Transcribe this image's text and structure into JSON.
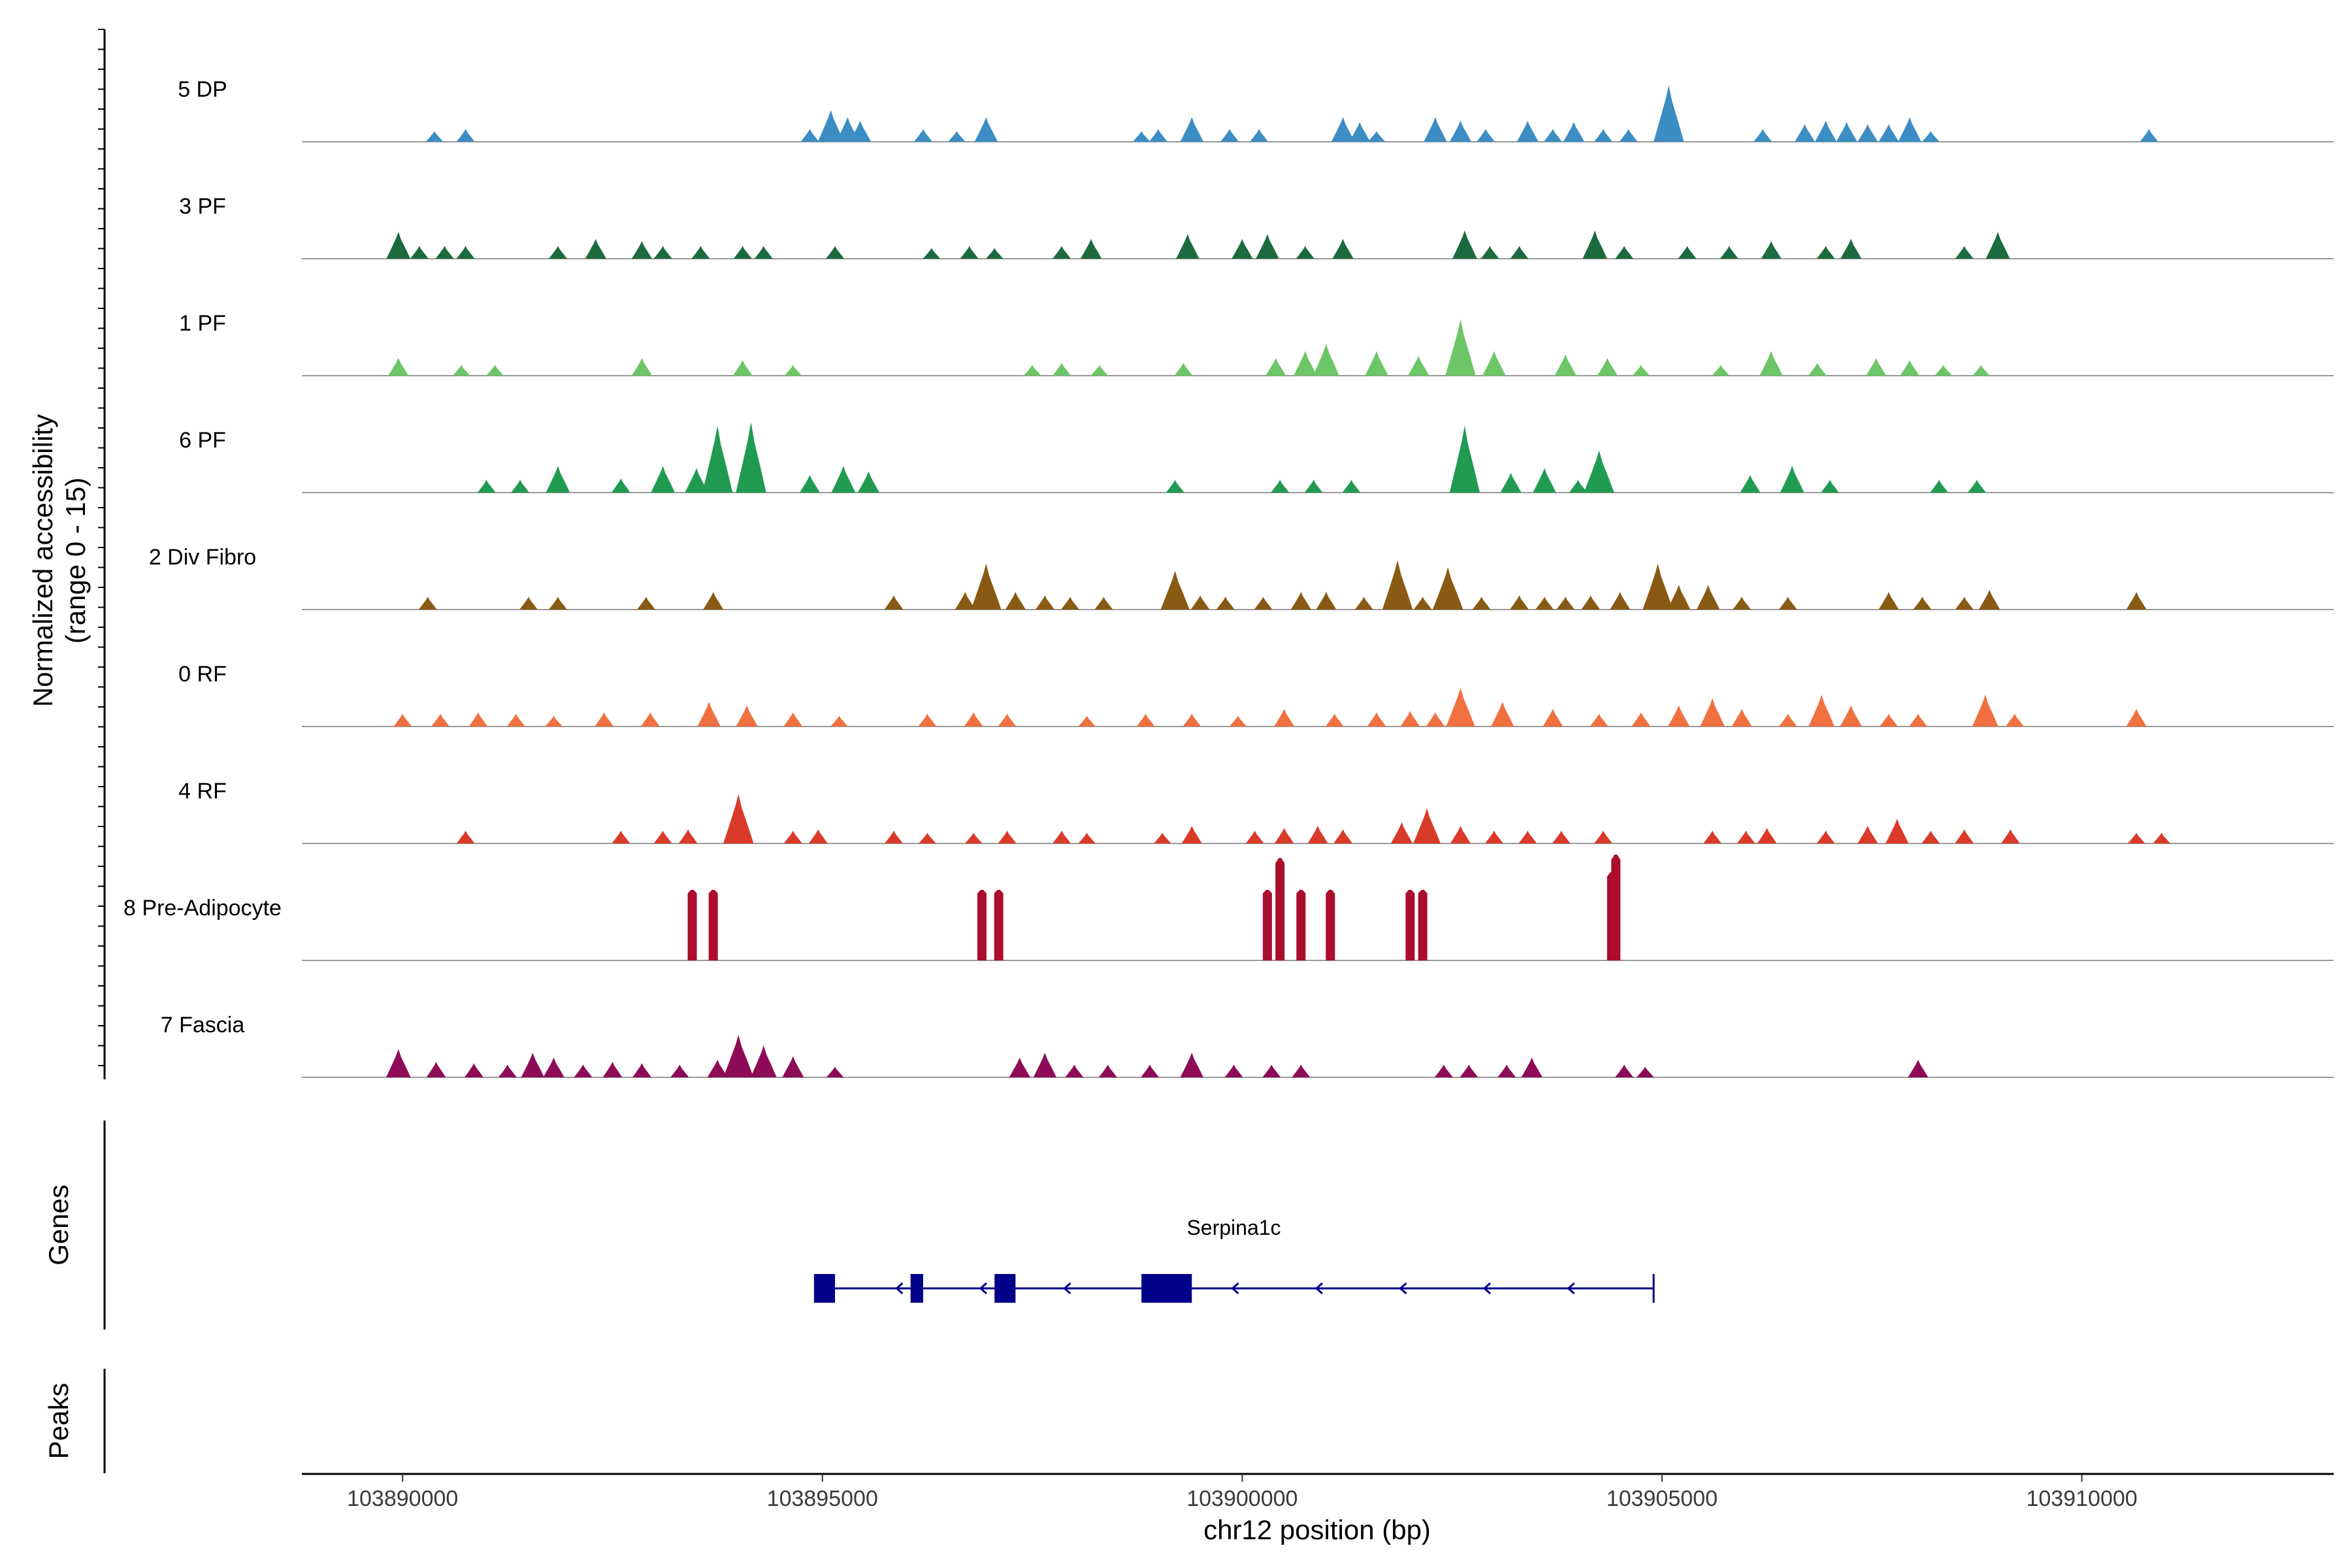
{
  "chart_data": {
    "type": "area",
    "title": "",
    "ylabel": "Normalized accessibility",
    "ylabel_range": "(range 0 - 15)",
    "xlabel": "chr12 position (bp)",
    "xlim": [
      103888800,
      103913000
    ],
    "ylim": [
      0,
      15
    ],
    "x_ticks": [
      103890000,
      103895000,
      103900000,
      103905000,
      103910000
    ],
    "x_tick_labels": [
      "103890000",
      "103895000",
      "103900000",
      "103905000",
      "103910000"
    ],
    "panel_labels": {
      "genes": "Genes",
      "peaks": "Peaks"
    },
    "series": [
      {
        "name": "5 DP",
        "color": "#3C8DC4",
        "peaks": [
          [
            103890380,
            1.5
          ],
          [
            103890750,
            1.8
          ],
          [
            103894850,
            1.8
          ],
          [
            103895100,
            4.5
          ],
          [
            103895300,
            3.5
          ],
          [
            103895450,
            3.0
          ],
          [
            103896200,
            1.8
          ],
          [
            103896600,
            1.5
          ],
          [
            103896950,
            3.5
          ],
          [
            103898800,
            1.5
          ],
          [
            103899000,
            1.8
          ],
          [
            103899400,
            3.5
          ],
          [
            103899850,
            1.8
          ],
          [
            103900200,
            1.8
          ],
          [
            103901200,
            3.5
          ],
          [
            103901400,
            2.8
          ],
          [
            103901600,
            1.5
          ],
          [
            103902300,
            3.5
          ],
          [
            103902600,
            3.0
          ],
          [
            103902900,
            1.8
          ],
          [
            103903400,
            3.0
          ],
          [
            103903700,
            1.8
          ],
          [
            103903950,
            2.8
          ],
          [
            103904300,
            1.8
          ],
          [
            103904600,
            1.8
          ],
          [
            103905080,
            8.0
          ],
          [
            103906200,
            1.8
          ],
          [
            103906700,
            2.5
          ],
          [
            103906950,
            3.0
          ],
          [
            103907200,
            2.8
          ],
          [
            103907450,
            2.5
          ],
          [
            103907700,
            2.5
          ],
          [
            103907950,
            3.5
          ],
          [
            103908200,
            1.5
          ],
          [
            103910800,
            1.8
          ]
        ]
      },
      {
        "name": "3 PF",
        "color": "#1B6B3E",
        "peaks": [
          [
            103889950,
            3.8
          ],
          [
            103890200,
            1.8
          ],
          [
            103890500,
            1.8
          ],
          [
            103890750,
            1.8
          ],
          [
            103891850,
            1.8
          ],
          [
            103892300,
            2.8
          ],
          [
            103892850,
            2.5
          ],
          [
            103893100,
            1.8
          ],
          [
            103893550,
            1.8
          ],
          [
            103894050,
            1.8
          ],
          [
            103894300,
            1.8
          ],
          [
            103895150,
            1.8
          ],
          [
            103896300,
            1.5
          ],
          [
            103896750,
            1.8
          ],
          [
            103897050,
            1.5
          ],
          [
            103897850,
            1.8
          ],
          [
            103898200,
            2.8
          ],
          [
            103899350,
            3.5
          ],
          [
            103900000,
            2.8
          ],
          [
            103900300,
            3.5
          ],
          [
            103900750,
            1.8
          ],
          [
            103901200,
            2.8
          ],
          [
            103902650,
            4.0
          ],
          [
            103902950,
            1.8
          ],
          [
            103903300,
            1.8
          ],
          [
            103904200,
            4.0
          ],
          [
            103904550,
            1.8
          ],
          [
            103905300,
            1.8
          ],
          [
            103905800,
            1.8
          ],
          [
            103906300,
            2.5
          ],
          [
            103906950,
            1.8
          ],
          [
            103907250,
            2.8
          ],
          [
            103908600,
            1.8
          ],
          [
            103909000,
            3.8
          ]
        ]
      },
      {
        "name": "1 PF",
        "color": "#6CC567",
        "peaks": [
          [
            103889950,
            2.5
          ],
          [
            103890700,
            1.5
          ],
          [
            103891100,
            1.5
          ],
          [
            103892850,
            2.5
          ],
          [
            103894050,
            2.2
          ],
          [
            103894650,
            1.5
          ],
          [
            103897500,
            1.5
          ],
          [
            103897850,
            1.8
          ],
          [
            103898300,
            1.5
          ],
          [
            103899300,
            1.8
          ],
          [
            103900400,
            2.5
          ],
          [
            103900750,
            3.5
          ],
          [
            103901000,
            4.5
          ],
          [
            103901600,
            3.5
          ],
          [
            103902100,
            2.8
          ],
          [
            103902600,
            8.0
          ],
          [
            103903000,
            3.5
          ],
          [
            103903850,
            3.0
          ],
          [
            103904350,
            2.5
          ],
          [
            103904750,
            1.5
          ],
          [
            103905700,
            1.5
          ],
          [
            103906300,
            3.5
          ],
          [
            103906850,
            1.8
          ],
          [
            103907550,
            2.5
          ],
          [
            103907950,
            2.2
          ],
          [
            103908350,
            1.5
          ],
          [
            103908800,
            1.5
          ]
        ]
      },
      {
        "name": "6 PF",
        "color": "#219B52",
        "peaks": [
          [
            103891000,
            1.8
          ],
          [
            103891400,
            1.8
          ],
          [
            103891850,
            3.8
          ],
          [
            103892600,
            2.0
          ],
          [
            103893100,
            3.8
          ],
          [
            103893500,
            3.5
          ],
          [
            103893750,
            9.5
          ],
          [
            103894150,
            10.0
          ],
          [
            103894850,
            2.5
          ],
          [
            103895250,
            3.8
          ],
          [
            103895550,
            3.0
          ],
          [
            103899200,
            1.8
          ],
          [
            103900450,
            1.8
          ],
          [
            103900850,
            1.8
          ],
          [
            103901300,
            1.8
          ],
          [
            103902650,
            9.5
          ],
          [
            103903200,
            2.8
          ],
          [
            103903600,
            3.5
          ],
          [
            103904000,
            1.8
          ],
          [
            103904250,
            6.0
          ],
          [
            103906050,
            2.5
          ],
          [
            103906550,
            3.8
          ],
          [
            103907000,
            1.8
          ],
          [
            103908300,
            1.8
          ],
          [
            103908750,
            1.8
          ]
        ]
      },
      {
        "name": "2 Div Fibro",
        "color": "#895A13",
        "peaks": [
          [
            103890300,
            1.8
          ],
          [
            103891500,
            1.8
          ],
          [
            103891850,
            1.8
          ],
          [
            103892900,
            1.8
          ],
          [
            103893700,
            2.5
          ],
          [
            103895850,
            2.0
          ],
          [
            103896700,
            2.5
          ],
          [
            103896950,
            6.5
          ],
          [
            103897300,
            2.5
          ],
          [
            103897650,
            2.0
          ],
          [
            103897950,
            1.8
          ],
          [
            103898350,
            1.8
          ],
          [
            103899200,
            5.5
          ],
          [
            103899500,
            2.0
          ],
          [
            103899800,
            1.8
          ],
          [
            103900250,
            1.8
          ],
          [
            103900700,
            2.5
          ],
          [
            103901000,
            2.5
          ],
          [
            103901450,
            1.8
          ],
          [
            103901850,
            7.0
          ],
          [
            103902150,
            1.8
          ],
          [
            103902450,
            6.0
          ],
          [
            103902850,
            1.8
          ],
          [
            103903300,
            2.0
          ],
          [
            103903600,
            1.8
          ],
          [
            103903850,
            1.8
          ],
          [
            103904150,
            2.0
          ],
          [
            103904500,
            2.5
          ],
          [
            103904950,
            6.5
          ],
          [
            103905200,
            3.5
          ],
          [
            103905550,
            3.5
          ],
          [
            103905950,
            1.8
          ],
          [
            103906500,
            1.8
          ],
          [
            103907700,
            2.5
          ],
          [
            103908100,
            1.8
          ],
          [
            103908600,
            1.8
          ],
          [
            103908900,
            2.8
          ],
          [
            103910650,
            2.5
          ]
        ]
      },
      {
        "name": "0 RF",
        "color": "#F07040",
        "peaks": [
          [
            103890000,
            1.8
          ],
          [
            103890450,
            1.8
          ],
          [
            103890900,
            2.0
          ],
          [
            103891350,
            1.8
          ],
          [
            103891800,
            1.5
          ],
          [
            103892400,
            2.0
          ],
          [
            103892950,
            2.0
          ],
          [
            103893650,
            3.5
          ],
          [
            103894100,
            3.0
          ],
          [
            103894650,
            2.0
          ],
          [
            103895200,
            1.5
          ],
          [
            103896250,
            1.8
          ],
          [
            103896800,
            2.0
          ],
          [
            103897200,
            1.8
          ],
          [
            103898150,
            1.5
          ],
          [
            103898850,
            1.8
          ],
          [
            103899400,
            1.8
          ],
          [
            103899950,
            1.5
          ],
          [
            103900500,
            2.5
          ],
          [
            103901100,
            1.8
          ],
          [
            103901600,
            2.0
          ],
          [
            103902000,
            2.2
          ],
          [
            103902300,
            2.0
          ],
          [
            103902600,
            5.5
          ],
          [
            103903100,
            3.5
          ],
          [
            103903700,
            2.5
          ],
          [
            103904250,
            1.8
          ],
          [
            103904750,
            2.0
          ],
          [
            103905200,
            3.0
          ],
          [
            103905600,
            4.0
          ],
          [
            103905950,
            2.5
          ],
          [
            103906500,
            1.8
          ],
          [
            103906900,
            4.5
          ],
          [
            103907250,
            3.0
          ],
          [
            103907700,
            1.8
          ],
          [
            103908050,
            1.8
          ],
          [
            103908850,
            4.5
          ],
          [
            103909200,
            1.8
          ],
          [
            103910650,
            2.5
          ]
        ]
      },
      {
        "name": "4 RF",
        "color": "#DA3A2A",
        "peaks": [
          [
            103890750,
            1.8
          ],
          [
            103892600,
            1.8
          ],
          [
            103893100,
            1.8
          ],
          [
            103893400,
            2.0
          ],
          [
            103894000,
            7.0
          ],
          [
            103894650,
            1.8
          ],
          [
            103894950,
            2.0
          ],
          [
            103895850,
            1.8
          ],
          [
            103896250,
            1.5
          ],
          [
            103896800,
            1.5
          ],
          [
            103897200,
            1.8
          ],
          [
            103897850,
            1.8
          ],
          [
            103898150,
            1.5
          ],
          [
            103899050,
            1.5
          ],
          [
            103899400,
            2.5
          ],
          [
            103900150,
            1.8
          ],
          [
            103900500,
            2.2
          ],
          [
            103900900,
            2.5
          ],
          [
            103901200,
            2.0
          ],
          [
            103901900,
            3.0
          ],
          [
            103902200,
            5.0
          ],
          [
            103902600,
            2.5
          ],
          [
            103903000,
            1.8
          ],
          [
            103903400,
            1.8
          ],
          [
            103903800,
            1.8
          ],
          [
            103904300,
            1.8
          ],
          [
            103905600,
            1.8
          ],
          [
            103906000,
            1.8
          ],
          [
            103906250,
            2.2
          ],
          [
            103906950,
            1.8
          ],
          [
            103907450,
            2.5
          ],
          [
            103907800,
            3.5
          ],
          [
            103908200,
            1.8
          ],
          [
            103908600,
            2.0
          ],
          [
            103909150,
            2.0
          ],
          [
            103910650,
            1.5
          ],
          [
            103910950,
            1.5
          ]
        ]
      },
      {
        "name": "8 Pre-Adipocyte",
        "color": "#AB0D2C",
        "bars": [
          [
            103893450,
            10.0
          ],
          [
            103893700,
            10.0
          ],
          [
            103896900,
            10.0
          ],
          [
            103897100,
            10.0
          ],
          [
            103900300,
            10.0
          ],
          [
            103900450,
            14.5
          ],
          [
            103900700,
            10.0
          ],
          [
            103901050,
            10.0
          ],
          [
            103902000,
            10.0
          ],
          [
            103902150,
            10.0
          ],
          [
            103904400,
            12.5
          ],
          [
            103904450,
            15.0
          ]
        ]
      },
      {
        "name": "7 Fascia",
        "color": "#8E0B57",
        "peaks": [
          [
            103889950,
            4.0
          ],
          [
            103890400,
            2.2
          ],
          [
            103890850,
            2.0
          ],
          [
            103891250,
            1.8
          ],
          [
            103891550,
            3.5
          ],
          [
            103891800,
            2.8
          ],
          [
            103892150,
            1.8
          ],
          [
            103892500,
            2.2
          ],
          [
            103892850,
            2.0
          ],
          [
            103893300,
            1.8
          ],
          [
            103893750,
            2.5
          ],
          [
            103894000,
            6.0
          ],
          [
            103894300,
            4.5
          ],
          [
            103894650,
            3.0
          ],
          [
            103895150,
            1.5
          ],
          [
            103897350,
            2.8
          ],
          [
            103897650,
            3.5
          ],
          [
            103898000,
            1.8
          ],
          [
            103898400,
            1.8
          ],
          [
            103898900,
            1.8
          ],
          [
            103899400,
            3.5
          ],
          [
            103899900,
            1.8
          ],
          [
            103900350,
            1.8
          ],
          [
            103900700,
            1.8
          ],
          [
            103902400,
            1.8
          ],
          [
            103902700,
            1.8
          ],
          [
            103903150,
            1.8
          ],
          [
            103903450,
            2.8
          ],
          [
            103904550,
            1.8
          ],
          [
            103904800,
            1.5
          ],
          [
            103908050,
            2.5
          ]
        ]
      }
    ],
    "gene": {
      "name": "Serpina1c",
      "strand": "-",
      "start": 103894900,
      "end": 103904900,
      "exons": [
        [
          103894900,
          103895150
        ],
        [
          103896050,
          103896200
        ],
        [
          103897050,
          103897300
        ],
        [
          103898800,
          103899400
        ]
      ]
    }
  }
}
